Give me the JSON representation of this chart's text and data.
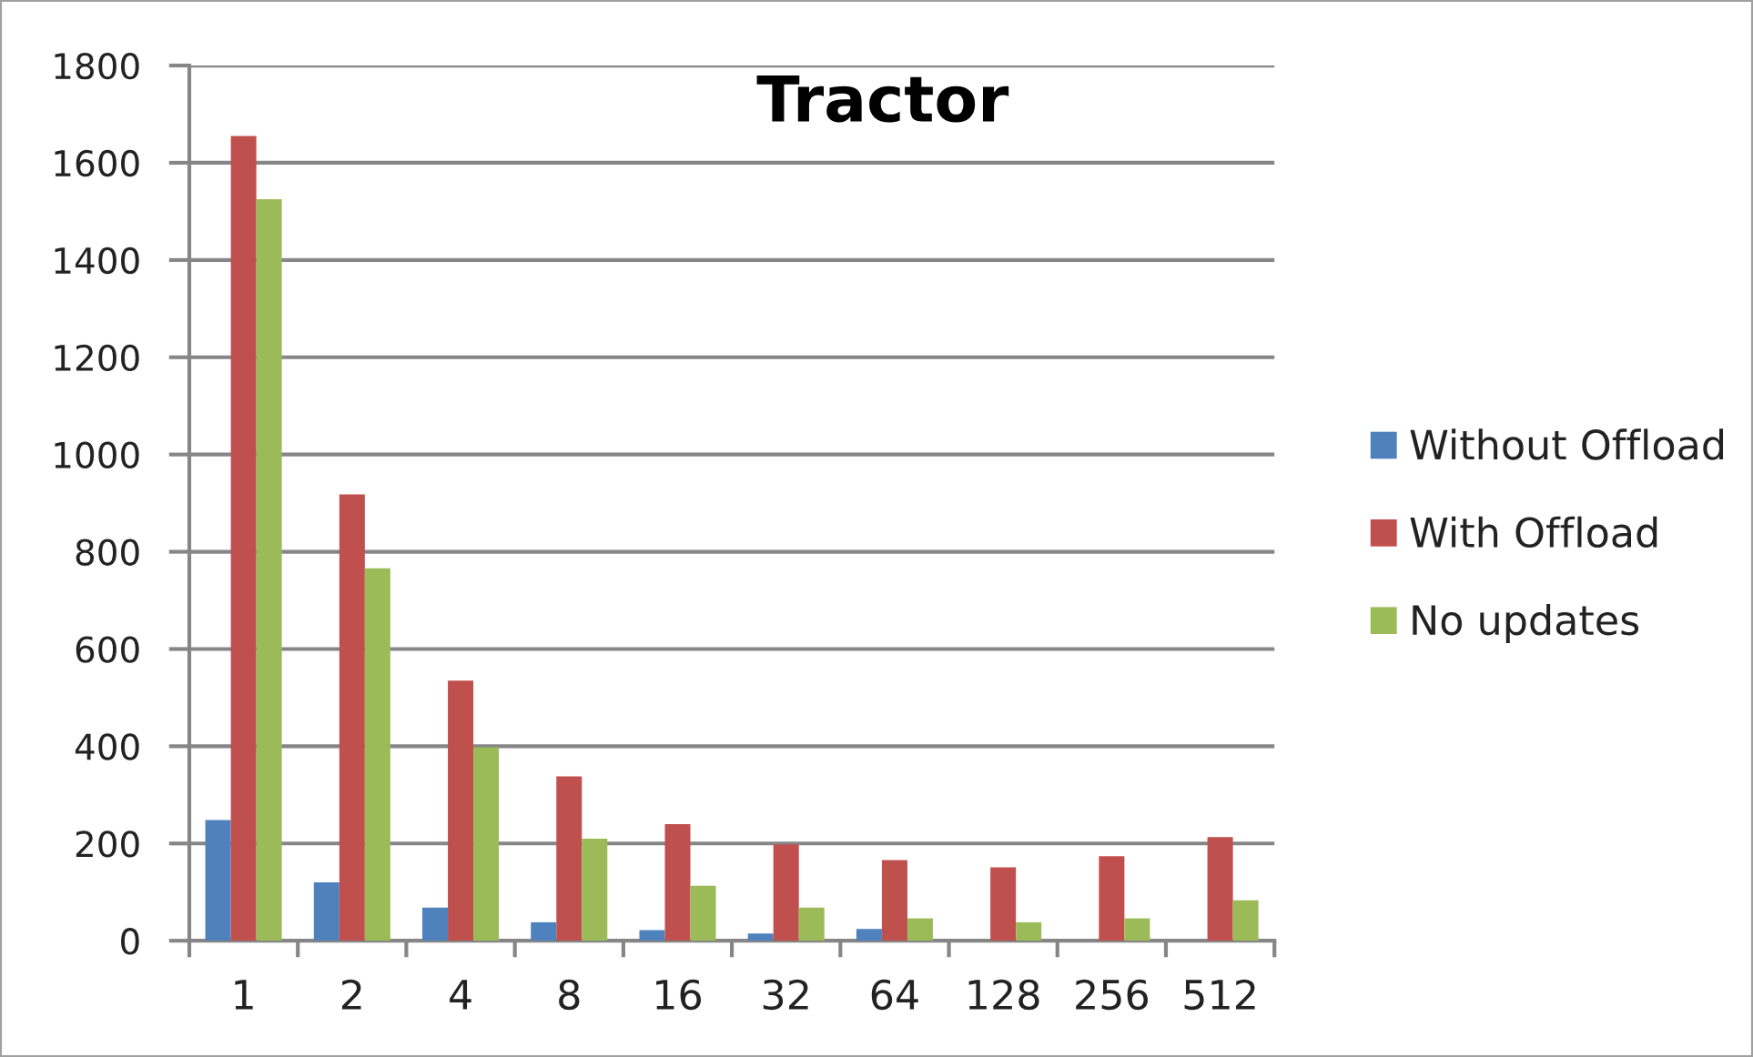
{
  "chart_data": {
    "type": "bar",
    "title": "Tractor",
    "categories": [
      "1",
      "2",
      "4",
      "8",
      "16",
      "32",
      "64",
      "128",
      "256",
      "512"
    ],
    "series": [
      {
        "name": "Without Offload",
        "color": "#4f81bd",
        "values": [
          248,
          120,
          68,
          38,
          22,
          15,
          24,
          null,
          null,
          null
        ]
      },
      {
        "name": "With Offload",
        "color": "#c0504d",
        "values": [
          1655,
          918,
          535,
          338,
          240,
          198,
          166,
          151,
          174,
          213
        ]
      },
      {
        "name": "No updates",
        "color": "#9bbb59",
        "values": [
          1525,
          766,
          398,
          210,
          113,
          68,
          46,
          38,
          46,
          83
        ]
      }
    ],
    "ylim": [
      0,
      1800
    ],
    "yticks": [
      0,
      200,
      400,
      600,
      800,
      1000,
      1200,
      1400,
      1600,
      1800
    ],
    "grid": "y",
    "legend": "right"
  }
}
